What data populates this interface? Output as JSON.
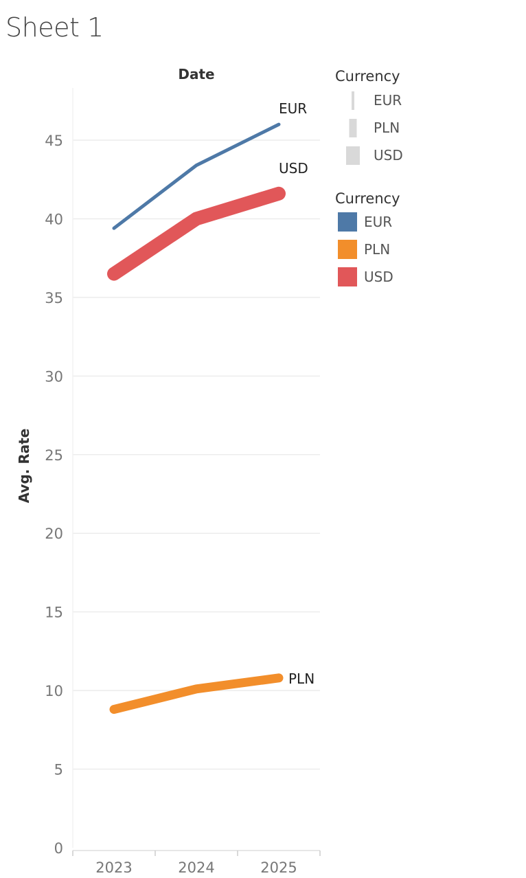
{
  "sheet": {
    "title": "Sheet 1"
  },
  "chart_data": {
    "type": "line",
    "xlabel": "Date",
    "ylabel": "Avg. Rate",
    "x": [
      "2023",
      "2024",
      "2025"
    ],
    "ylim": [
      0,
      48
    ],
    "yticks": [
      "0",
      "5",
      "10",
      "15",
      "20",
      "25",
      "30",
      "35",
      "40",
      "45"
    ],
    "grid": true,
    "series": [
      {
        "name": "EUR",
        "values": [
          39.4,
          43.4,
          46.0
        ],
        "color": "#4e79a7",
        "size_rank": 1
      },
      {
        "name": "PLN",
        "values": [
          8.8,
          10.1,
          10.8
        ],
        "color": "#f28e2b",
        "size_rank": 2
      },
      {
        "name": "USD",
        "values": [
          36.5,
          40.0,
          41.6
        ],
        "color": "#e15759",
        "size_rank": 3
      }
    ]
  },
  "legends": {
    "size": {
      "title": "Currency",
      "items": [
        "EUR",
        "PLN",
        "USD"
      ]
    },
    "color": {
      "title": "Currency",
      "items": [
        {
          "label": "EUR",
          "color": "#4e79a7"
        },
        {
          "label": "PLN",
          "color": "#f28e2b"
        },
        {
          "label": "USD",
          "color": "#e15759"
        }
      ]
    }
  }
}
